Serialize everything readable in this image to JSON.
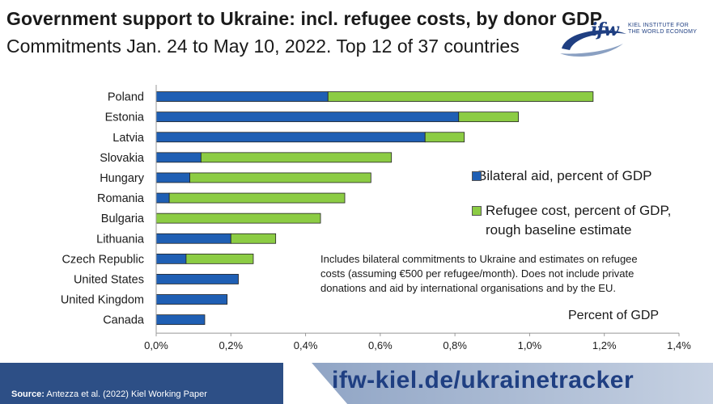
{
  "header": {
    "title": "Government support to Ukraine: incl. refugee costs, by donor GDP",
    "subtitle": "Commitments Jan. 24 to May 10, 2022. Top 12 of 37 countries"
  },
  "logo": {
    "mark": "ifw",
    "text_line1": "KIEL INSTITUTE FOR",
    "text_line2": "THE WORLD ECONOMY"
  },
  "note": "Includes bilateral commitments to Ukraine and estimates on refugee costs (assuming €500 per refugee/month). Does not include private donations and aid by international organisations and by the EU.",
  "footer": {
    "source_label": "Source:",
    "source_text": " Antezza et al. (2022) Kiel Working Paper",
    "url": "ifw-kiel.de/ukrainetracker"
  },
  "chart_data": {
    "type": "bar",
    "orientation": "horizontal",
    "stacked": true,
    "categories": [
      "Poland",
      "Estonia",
      "Latvia",
      "Slovakia",
      "Hungary",
      "Romania",
      "Bulgaria",
      "Lithuania",
      "Czech Republic",
      "United States",
      "United Kingdom",
      "Canada"
    ],
    "series": [
      {
        "name": "Bilateral aid, percent of GDP",
        "color": "#1f5fb4",
        "values": [
          0.46,
          0.81,
          0.72,
          0.12,
          0.09,
          0.035,
          0.0,
          0.2,
          0.08,
          0.22,
          0.19,
          0.13
        ]
      },
      {
        "name": "Refugee cost, percent of GDP, rough baseline estimate",
        "color": "#8ccc44",
        "values": [
          0.71,
          0.16,
          0.105,
          0.51,
          0.485,
          0.47,
          0.44,
          0.12,
          0.18,
          0.0,
          0.0,
          0.0
        ]
      }
    ],
    "legend": {
      "position": "right",
      "items": [
        {
          "lines": [
            "Bilateral aid, percent of GDP"
          ]
        },
        {
          "lines": [
            "Refugee cost, percent of GDP,",
            "rough baseline estimate"
          ]
        }
      ]
    },
    "xlabel": "Percent of GDP",
    "xlim": [
      0,
      1.4
    ],
    "xticks": [
      0,
      0.2,
      0.4,
      0.6,
      0.8,
      1.0,
      1.2,
      1.4
    ],
    "xtick_labels": [
      "0,0%",
      "0,2%",
      "0,4%",
      "0,6%",
      "0,8%",
      "1,0%",
      "1,2%",
      "1,4%"
    ],
    "grid": false
  }
}
